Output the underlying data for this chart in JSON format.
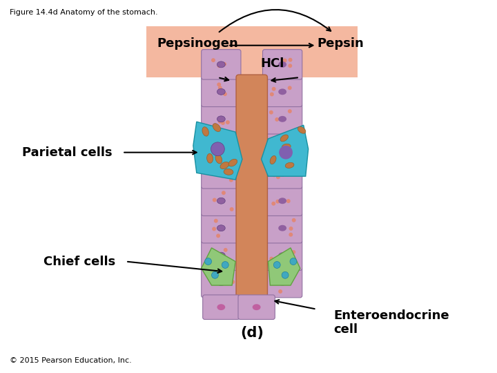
{
  "title": "Figure 14.4d Anatomy of the stomach.",
  "copyright": "© 2015 Pearson Education, Inc.",
  "label_d": "(d)",
  "label_pepsinogen": "Pepsinogen",
  "label_pepsin": "Pepsin",
  "label_hcl": "HCl",
  "label_parietal": "Parietal cells",
  "label_chief": "Chief cells",
  "label_entero": "Enteroendocrine\ncell",
  "bg_box_color": "#F4B8A0",
  "outer_cell_color": "#C8A0C8",
  "central_tube_color": "#D2855A",
  "parietal_color": "#40B8D0",
  "chief_color": "#90C878",
  "bg_color": "#FFFFFF",
  "label_fontsize": 13,
  "small_fontsize": 8,
  "title_fontsize": 8
}
